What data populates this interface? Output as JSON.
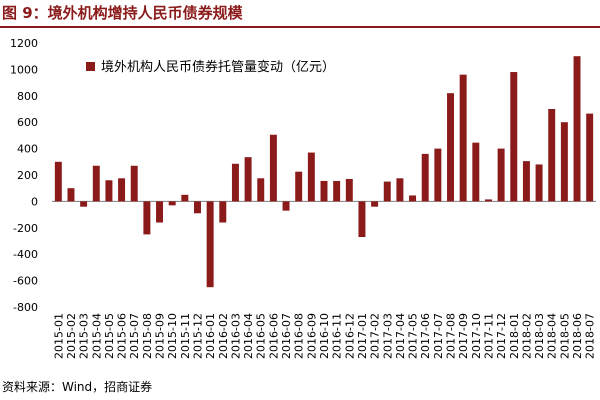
{
  "title": "图 9：境外机构增持人民币债券规模",
  "source": "资料来源：Wind，招商证券",
  "colors": {
    "bar": "#8b1a1a",
    "title": "#8b1a1a"
  },
  "chart_data": {
    "type": "bar",
    "title": "",
    "xlabel": "",
    "ylabel": "",
    "ylim": [
      -800,
      1200
    ],
    "yticks": [
      -800,
      -600,
      -400,
      -200,
      0,
      200,
      400,
      600,
      800,
      1000,
      1200
    ],
    "grid": false,
    "legend": {
      "placement": "top-left"
    },
    "categories": [
      "2015-01",
      "2015-02",
      "2015-03",
      "2015-04",
      "2015-05",
      "2015-06",
      "2015-07",
      "2015-08",
      "2015-09",
      "2015-10",
      "2015-11",
      "2015-12",
      "2016-01",
      "2016-02",
      "2016-03",
      "2016-04",
      "2016-05",
      "2016-06",
      "2016-07",
      "2016-08",
      "2016-09",
      "2016-10",
      "2016-11",
      "2016-12",
      "2017-01",
      "2017-02",
      "2017-03",
      "2017-04",
      "2017-05",
      "2017-06",
      "2017-07",
      "2017-08",
      "2017-09",
      "2017-10",
      "2017-11",
      "2017-12",
      "2018-01",
      "2018-02",
      "2018-03",
      "2018-04",
      "2018-05",
      "2018-06",
      "2018-07"
    ],
    "series": [
      {
        "name": "境外机构人民币债券托管量变动（亿元）",
        "values": [
          300,
          100,
          -40,
          270,
          160,
          175,
          270,
          -250,
          -160,
          -30,
          50,
          -90,
          -650,
          -160,
          285,
          335,
          175,
          505,
          -70,
          225,
          370,
          155,
          155,
          170,
          -270,
          -40,
          150,
          175,
          45,
          360,
          400,
          820,
          960,
          445,
          15,
          400,
          980,
          305,
          280,
          700,
          600,
          1100,
          665
        ]
      }
    ]
  }
}
